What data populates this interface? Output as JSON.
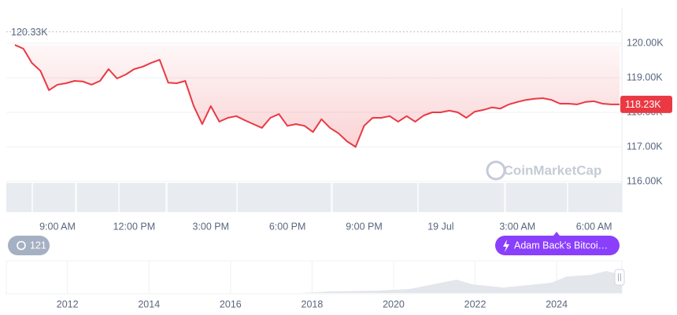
{
  "chart_data": [
    {
      "type": "line",
      "color": "#ea3943",
      "categories": [
        null,
        null,
        null,
        null,
        null,
        "9:00 AM",
        null,
        null,
        null,
        null,
        null,
        null,
        null,
        null,
        "12:00 PM",
        null,
        null,
        null,
        null,
        null,
        null,
        null,
        null,
        "3:00 PM",
        null,
        null,
        null,
        null,
        null,
        null,
        null,
        null,
        "6:00 PM",
        null,
        null,
        null,
        null,
        null,
        null,
        null,
        null,
        "9:00 PM",
        null,
        null,
        null,
        null,
        null,
        null,
        null,
        null,
        "19 Jul",
        null,
        null,
        null,
        null,
        null,
        null,
        null,
        null,
        "3:00 AM",
        null,
        null,
        null,
        null,
        null,
        null,
        null,
        null,
        "6:00 AM",
        null,
        null,
        null
      ],
      "values": [
        119.95,
        119.84,
        119.43,
        119.2,
        118.64,
        118.8,
        118.84,
        118.91,
        118.89,
        118.8,
        118.91,
        119.25,
        118.98,
        119.09,
        119.25,
        119.32,
        119.43,
        119.52,
        118.86,
        118.84,
        118.91,
        118.18,
        117.66,
        118.18,
        117.73,
        117.84,
        117.89,
        117.77,
        117.66,
        117.55,
        117.84,
        117.95,
        117.61,
        117.66,
        117.61,
        117.43,
        117.8,
        117.55,
        117.39,
        117.16,
        117.0,
        117.61,
        117.84,
        117.84,
        117.89,
        117.73,
        117.89,
        117.73,
        117.91,
        118.0,
        118.0,
        118.05,
        118.0,
        117.84,
        118.02,
        118.07,
        118.14,
        118.11,
        118.23,
        118.3,
        118.36,
        118.39,
        118.41,
        118.36,
        118.25,
        118.25,
        118.23,
        118.3,
        118.32,
        118.25,
        118.23,
        118.23
      ],
      "ylim": [
        116,
        121
      ],
      "yticks": [
        {
          "value": 116,
          "label": "116.00K"
        },
        {
          "value": 117,
          "label": "117.00K"
        },
        {
          "value": 118,
          "label": "118.00K"
        },
        {
          "value": 119,
          "label": "119.00K"
        },
        {
          "value": 120,
          "label": "120.00K"
        }
      ],
      "grid": true,
      "reference_line": {
        "value": 120.33,
        "label": "120.33K"
      },
      "last_price_label": "118.23K",
      "watermark": "CoinMarketCap",
      "events_count": 121,
      "event_label": "Adam Back's Bitcoi…"
    },
    {
      "type": "area",
      "xlim": [
        2010.5,
        2025.6
      ],
      "xticks": [
        2012,
        2014,
        2016,
        2018,
        2020,
        2022,
        2024
      ]
    }
  ]
}
